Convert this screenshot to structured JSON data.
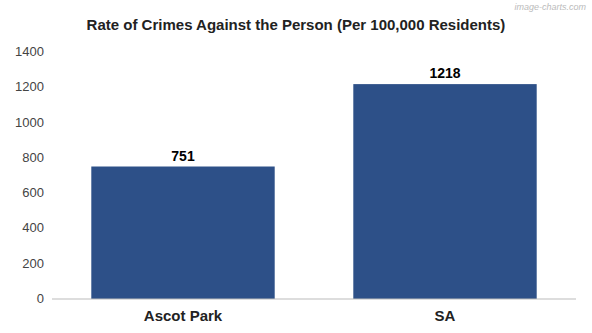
{
  "chart_data": {
    "type": "bar",
    "title": "Rate of Crimes Against the Person (Per 100,000 Residents)",
    "categories": [
      "Ascot Park",
      "SA"
    ],
    "values": [
      751,
      1218
    ],
    "color": "#2d5088",
    "ylim": [
      0,
      1400
    ],
    "yticks": [
      0,
      200,
      400,
      600,
      800,
      1000,
      1200,
      1400
    ],
    "grid": false,
    "data_labels": true,
    "annotations": [
      "image-charts.com"
    ]
  }
}
